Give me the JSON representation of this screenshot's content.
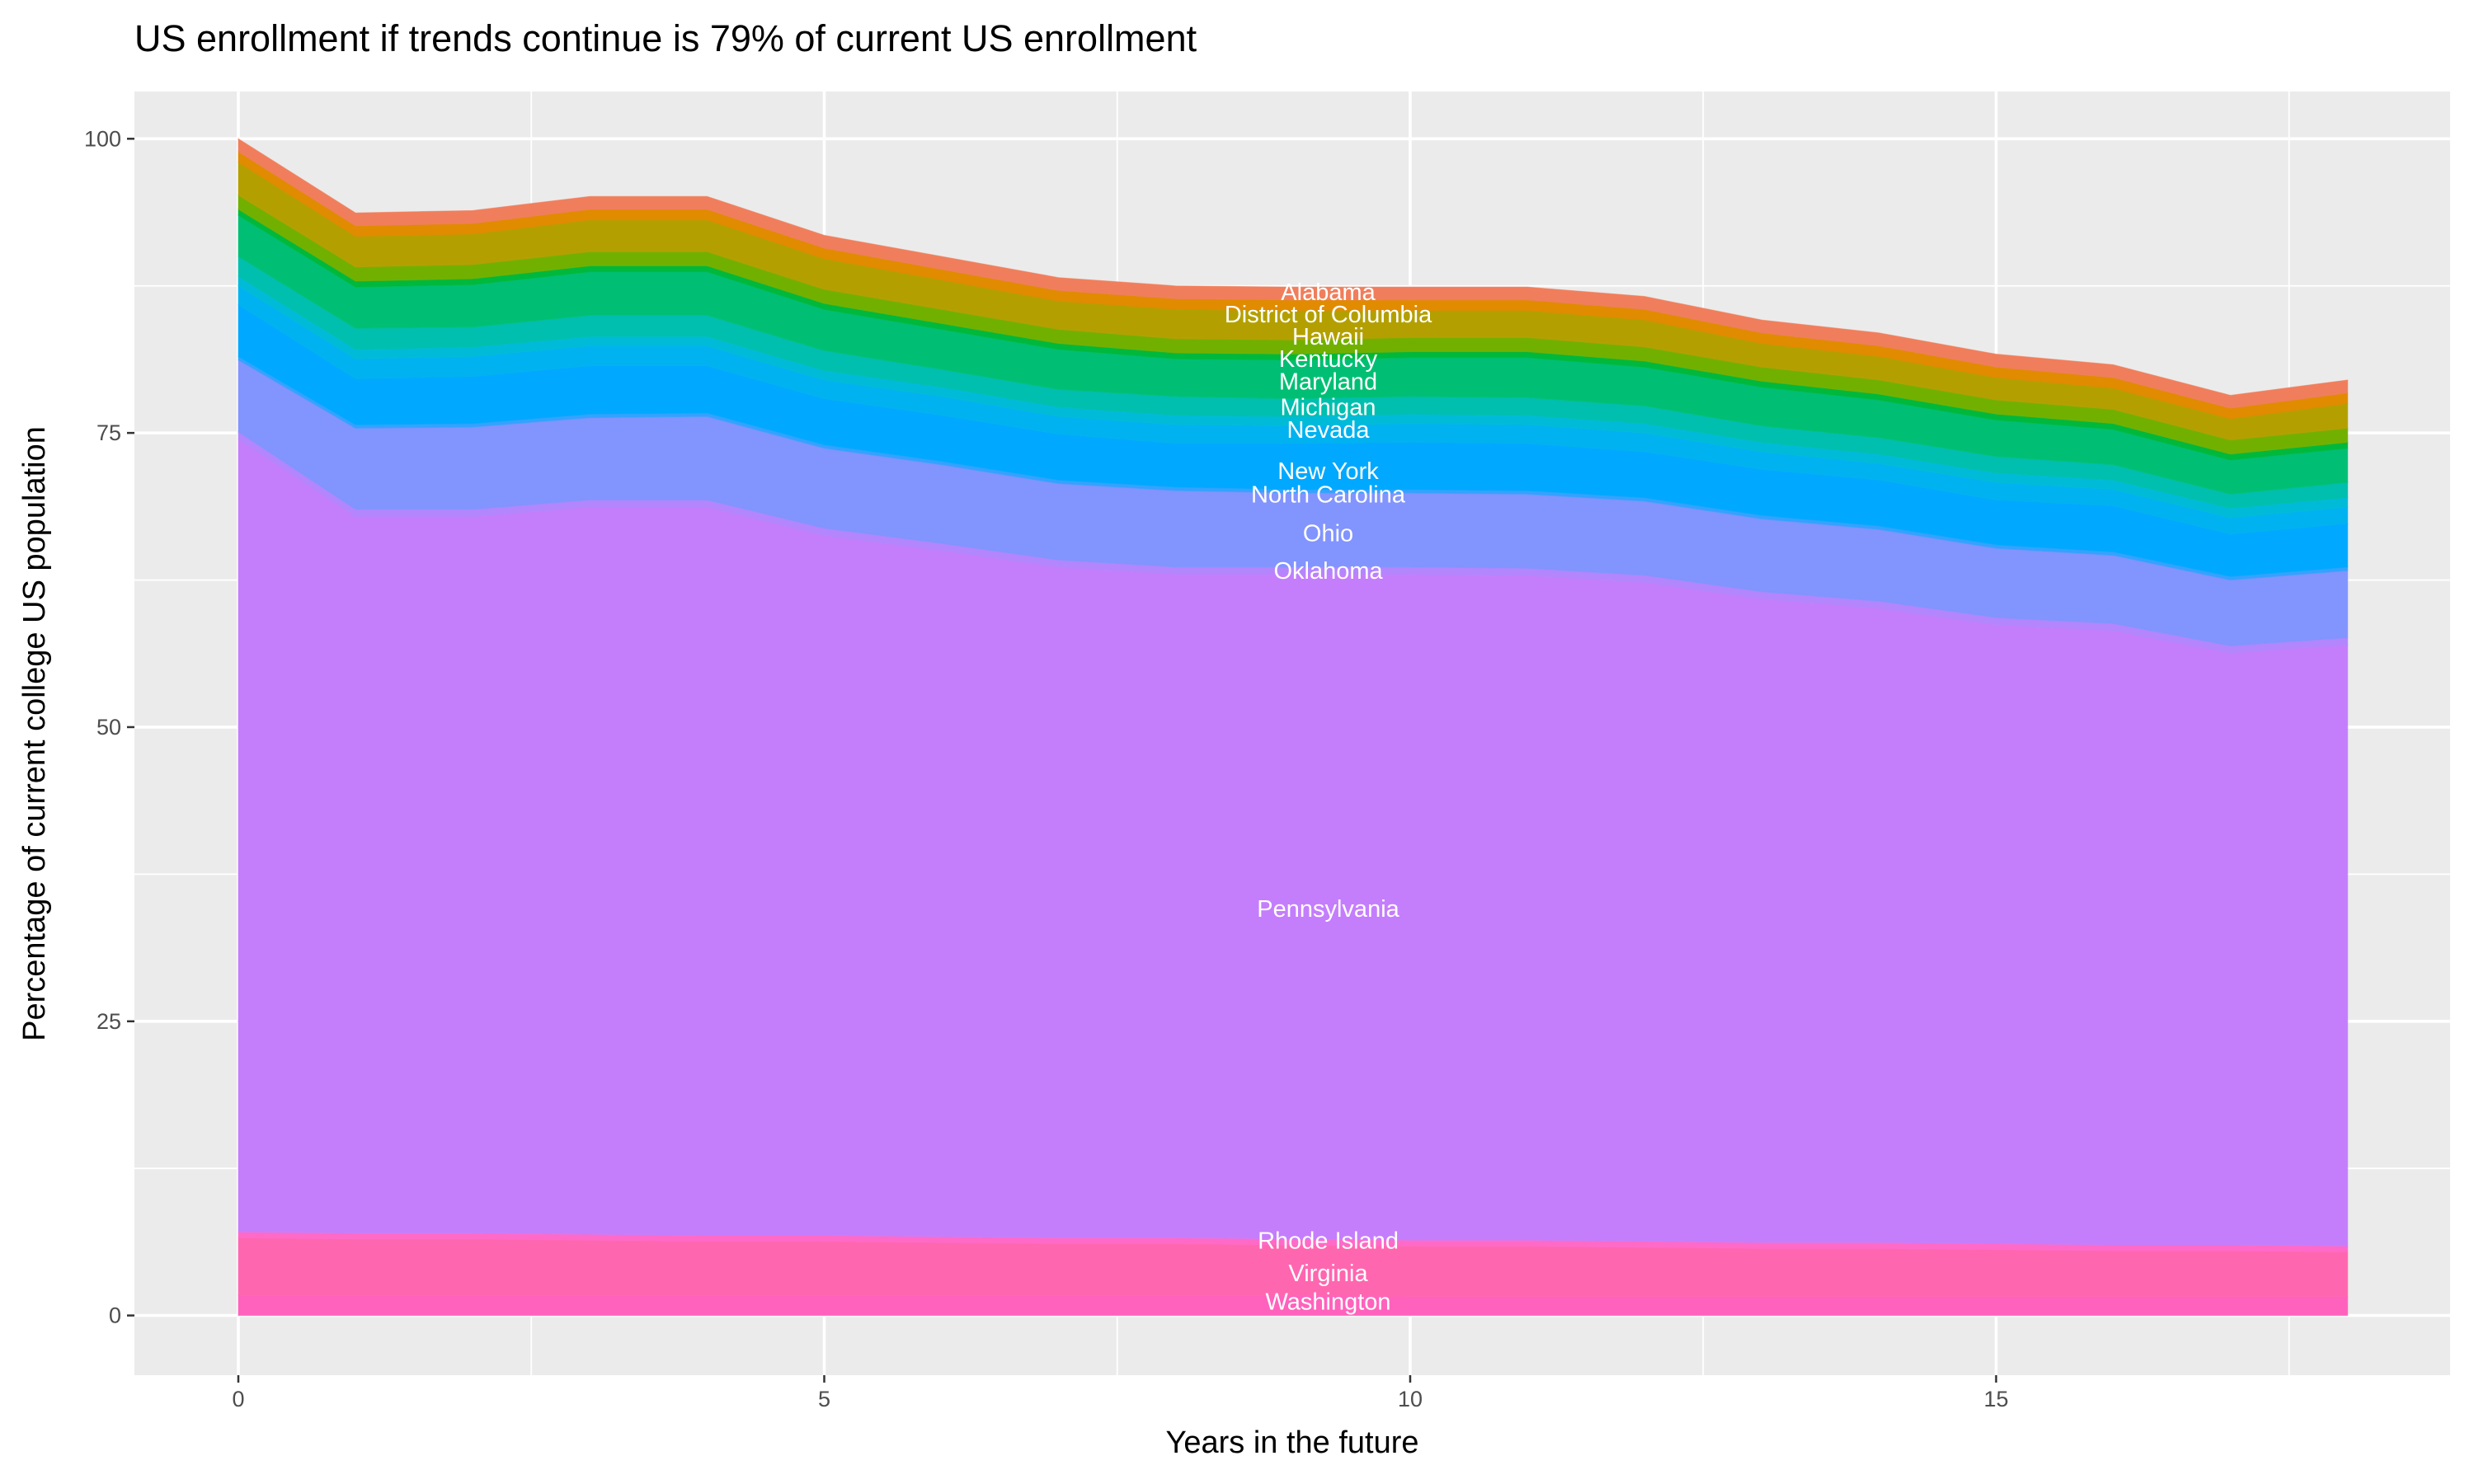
{
  "chart_data": {
    "type": "area",
    "stacked": true,
    "title": "US enrollment if trends continue is 79% of current US enrollment",
    "xlabel": "Years in the future",
    "ylabel": "Percentage of current college US population",
    "xlim": [
      0,
      18
    ],
    "ylim": [
      0,
      100
    ],
    "x_ticks": [
      0,
      5,
      10,
      15
    ],
    "y_ticks": [
      0,
      25,
      50,
      75,
      100
    ],
    "grid": true,
    "legend": "none",
    "x": [
      0,
      1,
      2,
      3,
      4,
      5,
      6,
      7,
      8,
      9,
      10,
      11,
      12,
      13,
      14,
      15,
      16,
      17,
      18
    ],
    "series": [
      {
        "name": "Washington",
        "color": "#FF62BC",
        "values": [
          1.7,
          1.7,
          1.7,
          1.7,
          1.7,
          1.7,
          1.7,
          1.7,
          1.7,
          1.7,
          1.6,
          1.6,
          1.6,
          1.6,
          1.6,
          1.6,
          1.6,
          1.6,
          1.6
        ]
      },
      {
        "name": "Virginia",
        "color": "#FF66B0",
        "values": [
          4.9,
          4.8,
          4.8,
          4.7,
          4.6,
          4.6,
          4.5,
          4.4,
          4.4,
          4.3,
          4.3,
          4.3,
          4.2,
          4.1,
          4.1,
          4.0,
          3.9,
          3.9,
          3.8
        ]
      },
      {
        "name": "Rhode Island",
        "color": "#FF6AC8",
        "values": [
          0.5,
          0.5,
          0.5,
          0.5,
          0.5,
          0.5,
          0.5,
          0.5,
          0.5,
          0.5,
          0.5,
          0.5,
          0.5,
          0.5,
          0.5,
          0.5,
          0.5,
          0.5,
          0.5
        ]
      },
      {
        "name": "Pennsylvania",
        "color": "#C47EFC",
        "values": [
          67.4,
          60.9,
          60.9,
          61.8,
          61.9,
          59.5,
          58.3,
          57.0,
          56.4,
          56.5,
          56.6,
          56.5,
          56.0,
          54.7,
          53.9,
          52.6,
          52.2,
          50.3,
          51.1
        ]
      },
      {
        "name": "Oklahoma",
        "color": "#B386FD",
        "values": [
          0.6,
          0.6,
          0.6,
          0.6,
          0.6,
          0.6,
          0.6,
          0.6,
          0.6,
          0.6,
          0.6,
          0.6,
          0.6,
          0.6,
          0.6,
          0.6,
          0.6,
          0.6,
          0.6
        ]
      },
      {
        "name": "Ohio",
        "color": "#8294FE",
        "values": [
          6.1,
          6.9,
          7.0,
          7.0,
          7.1,
          6.8,
          6.7,
          6.5,
          6.5,
          6.3,
          6.3,
          6.3,
          6.3,
          6.2,
          6.1,
          5.9,
          5.8,
          5.6,
          5.7
        ]
      },
      {
        "name": "North Carolina",
        "color": "#35A2FF",
        "values": [
          0.3,
          0.3,
          0.3,
          0.3,
          0.3,
          0.3,
          0.3,
          0.3,
          0.3,
          0.3,
          0.3,
          0.3,
          0.3,
          0.3,
          0.3,
          0.3,
          0.3,
          0.3,
          0.3
        ]
      },
      {
        "name": "New York",
        "color": "#00A8FF",
        "values": [
          4.4,
          3.9,
          4.0,
          4.1,
          4.0,
          3.9,
          3.9,
          3.9,
          3.7,
          3.9,
          4.0,
          4.0,
          3.9,
          3.9,
          3.9,
          3.8,
          3.9,
          3.6,
          3.7
        ]
      },
      {
        "name": "Nevada",
        "color": "#00B2F0",
        "values": [
          1.6,
          1.7,
          1.7,
          1.7,
          1.7,
          1.6,
          1.6,
          1.5,
          1.6,
          1.5,
          1.6,
          1.6,
          1.6,
          1.5,
          1.4,
          1.5,
          1.4,
          1.4,
          1.4
        ]
      },
      {
        "name": "",
        "color": "#00BBD8",
        "values": [
          0.8,
          0.8,
          0.8,
          0.8,
          0.8,
          0.8,
          0.8,
          0.8,
          0.8,
          0.8,
          0.8,
          0.8,
          0.8,
          0.8,
          0.8,
          0.8,
          0.8,
          0.8,
          0.8
        ]
      },
      {
        "name": "Michigan",
        "color": "#00BFAE",
        "values": [
          1.7,
          1.8,
          1.7,
          1.8,
          1.8,
          1.7,
          1.5,
          1.5,
          1.6,
          1.5,
          1.5,
          1.5,
          1.5,
          1.4,
          1.4,
          1.4,
          1.3,
          1.2,
          1.3
        ]
      },
      {
        "name": "Maryland",
        "color": "#00BF74",
        "values": [
          3.5,
          3.5,
          3.6,
          3.7,
          3.7,
          3.5,
          3.4,
          3.4,
          3.2,
          3.3,
          3.3,
          3.4,
          3.3,
          3.3,
          3.2,
          3.1,
          3.0,
          2.9,
          2.9
        ]
      },
      {
        "name": "Kentucky",
        "color": "#00B83C",
        "values": [
          0.5,
          0.5,
          0.5,
          0.5,
          0.5,
          0.5,
          0.5,
          0.5,
          0.5,
          0.5,
          0.5,
          0.5,
          0.5,
          0.5,
          0.5,
          0.5,
          0.5,
          0.5,
          0.5
        ]
      },
      {
        "name": "Hawaii",
        "color": "#72B000",
        "values": [
          1.2,
          1.2,
          1.2,
          1.2,
          1.2,
          1.2,
          1.2,
          1.2,
          1.2,
          1.2,
          1.2,
          1.2,
          1.2,
          1.2,
          1.2,
          1.2,
          1.2,
          1.2,
          1.2
        ]
      },
      {
        "name": "District of Columbia",
        "color": "#B3A000",
        "values": [
          2.8,
          2.6,
          2.6,
          2.7,
          2.7,
          2.6,
          2.5,
          2.4,
          2.5,
          2.5,
          2.3,
          2.3,
          2.3,
          2.0,
          2.0,
          1.9,
          1.8,
          1.8,
          2.1
        ]
      },
      {
        "name": "",
        "color": "#E08B00",
        "values": [
          0.9,
          0.9,
          0.9,
          0.9,
          0.9,
          0.9,
          0.9,
          0.9,
          0.9,
          0.9,
          0.9,
          0.9,
          0.9,
          0.9,
          0.9,
          0.9,
          0.9,
          0.9,
          0.9
        ]
      },
      {
        "name": "Alabama",
        "color": "#F07E5C",
        "values": [
          1.1,
          1.1,
          1.1,
          1.1,
          1.1,
          1.1,
          1.1,
          1.1,
          1.1,
          1.1,
          1.1,
          1.1,
          1.1,
          1.1,
          1.1,
          1.1,
          1.1,
          1.1,
          1.1
        ]
      }
    ]
  }
}
